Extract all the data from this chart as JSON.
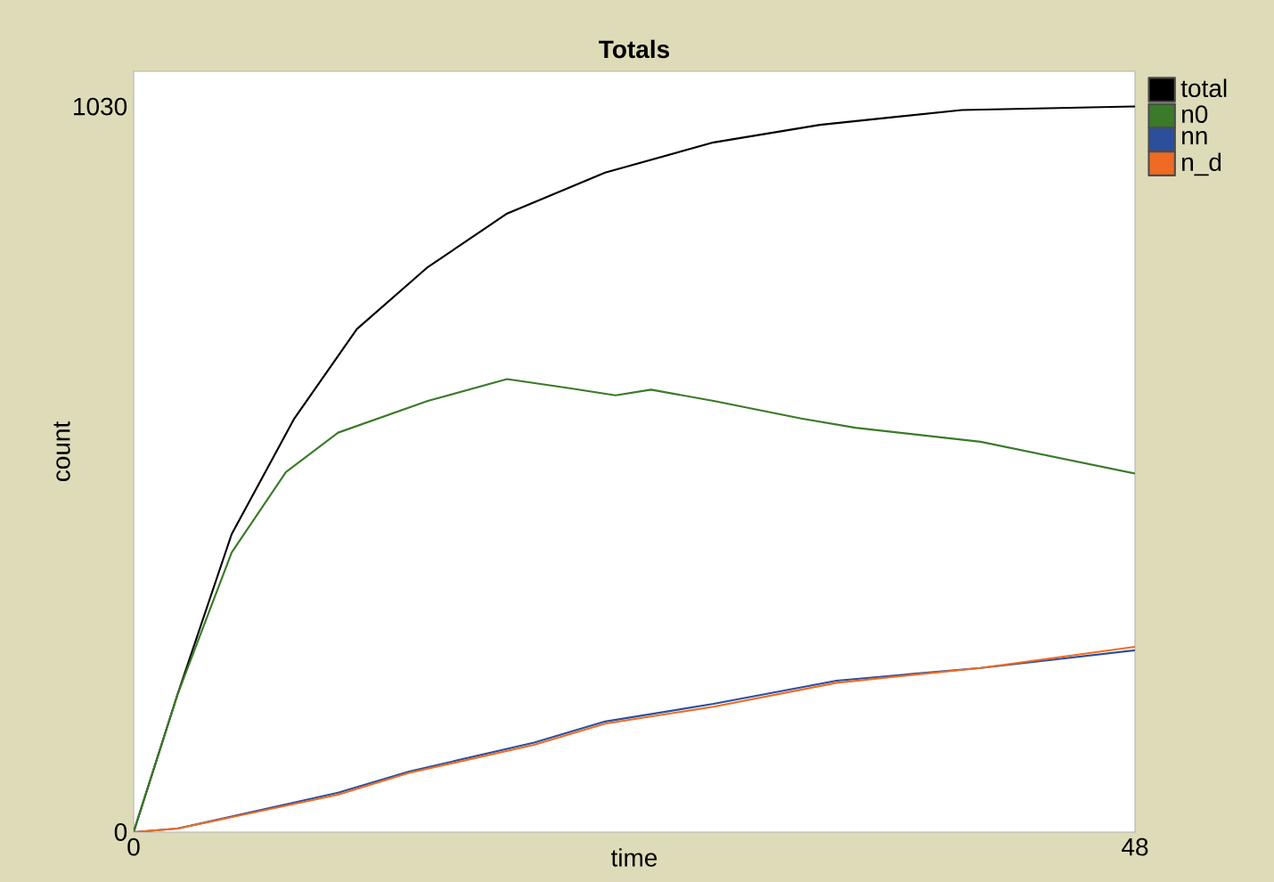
{
  "chart_data": {
    "type": "line",
    "title": "Totals",
    "xlabel": "time",
    "ylabel": "count",
    "xlim": [
      0,
      48
    ],
    "ylim": [
      0,
      1080
    ],
    "xticks": [
      0,
      48
    ],
    "yticks": [
      0,
      1030
    ],
    "legend": "right",
    "series": [
      {
        "name": "total",
        "color": "#000000",
        "x": [
          0,
          2.1,
          4.7,
          7.7,
          10.7,
          14.1,
          17.9,
          22.6,
          27.8,
          32.9,
          39.7,
          48
        ],
        "values": [
          0,
          195,
          423,
          587,
          714,
          802,
          878,
          936,
          979,
          1004,
          1025,
          1030
        ]
      },
      {
        "name": "n0",
        "color": "#3a7a28",
        "x": [
          0,
          2.1,
          4.7,
          7.3,
          9.8,
          14.1,
          17.9,
          20.9,
          23.1,
          24.8,
          27.8,
          32,
          34.6,
          40.6,
          48
        ],
        "values": [
          0,
          195,
          397,
          511,
          567,
          612,
          643,
          630,
          620,
          628,
          612,
          587,
          574,
          554,
          509
        ]
      },
      {
        "name": "nn",
        "color": "#2c4f9c",
        "x": [
          0,
          2.1,
          9.8,
          13.2,
          19.2,
          22.6,
          27.8,
          33.7,
          40.6,
          48
        ],
        "values": [
          0,
          5,
          56,
          86,
          127,
          157,
          182,
          215,
          233,
          258
        ]
      },
      {
        "name": "n_d",
        "color": "#f06a24",
        "x": [
          0,
          2.1,
          9.8,
          13.2,
          19.2,
          22.6,
          27.8,
          33.7,
          40.6,
          48
        ],
        "values": [
          0,
          5,
          53,
          84,
          124,
          154,
          178,
          212,
          233,
          263
        ]
      }
    ]
  }
}
